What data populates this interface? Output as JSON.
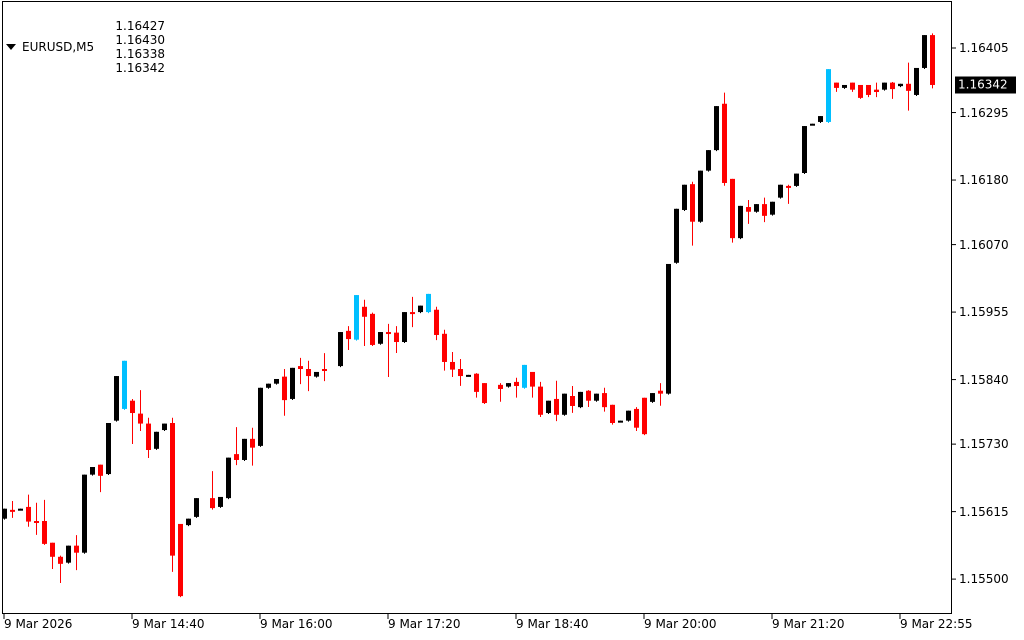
{
  "header": {
    "symbol": "EURUSD,M5",
    "open": "1.16427",
    "high": "1.16430",
    "low": "1.16338",
    "close": "1.16342"
  },
  "colors": {
    "bull": "#000000",
    "bear": "#ff0000",
    "cyan": "#00bfff",
    "current_bg": "#000000"
  },
  "chart_data": {
    "type": "candlestick",
    "title": "EURUSD,M5",
    "ylim": [
      1.15485,
      1.16475
    ],
    "current_price": "1.16342",
    "y_ticks": [
      "1.16405",
      "1.16295",
      "1.16180",
      "1.16070",
      "1.15955",
      "1.15840",
      "1.15730",
      "1.15615",
      "1.15500"
    ],
    "x_ticks": [
      {
        "bar": 0,
        "label": "9 Mar 2026"
      },
      {
        "bar": 16,
        "label": "9 Mar 14:40"
      },
      {
        "bar": 32,
        "label": "9 Mar 16:00"
      },
      {
        "bar": 48,
        "label": "9 Mar 17:20"
      },
      {
        "bar": 64,
        "label": "9 Mar 18:40"
      },
      {
        "bar": 80,
        "label": "9 Mar 20:00"
      },
      {
        "bar": 96,
        "label": "9 Mar 21:20"
      },
      {
        "bar": 112,
        "label": "9 Mar 22:55"
      }
    ],
    "ohlc_fields": [
      "open",
      "high",
      "low",
      "close",
      "color"
    ],
    "candles": [
      [
        1.15603,
        1.1562,
        1.15603,
        1.1562,
        "b"
      ],
      [
        1.15618,
        1.15633,
        1.15606,
        1.15615,
        "r"
      ],
      [
        1.1562,
        1.1562,
        1.1562,
        1.1562,
        "b"
      ],
      [
        1.15623,
        1.15644,
        1.15591,
        1.15598,
        "r"
      ],
      [
        1.15599,
        1.1563,
        1.15577,
        1.15596,
        "r"
      ],
      [
        1.15599,
        1.15635,
        1.1556,
        1.1556,
        "r"
      ],
      [
        1.15562,
        1.15562,
        1.15519,
        1.15538,
        "r"
      ],
      [
        1.15538,
        1.1554,
        1.15495,
        1.15526,
        "r"
      ],
      [
        1.15528,
        1.15557,
        1.15528,
        1.15557,
        "b"
      ],
      [
        1.15557,
        1.15575,
        1.15517,
        1.15545,
        "r"
      ],
      [
        1.15545,
        1.15678,
        1.15545,
        1.15678,
        "b"
      ],
      [
        1.15678,
        1.15691,
        1.15678,
        1.15691,
        "b"
      ],
      [
        1.15695,
        1.15695,
        1.1565,
        1.15676,
        "r"
      ],
      [
        1.15679,
        1.15766,
        1.15679,
        1.15766,
        "b"
      ],
      [
        1.1577,
        1.15846,
        1.1577,
        1.15846,
        "b"
      ],
      [
        1.1579,
        1.15872,
        1.1579,
        1.15872,
        "c"
      ],
      [
        1.15804,
        1.15807,
        1.15732,
        1.15783,
        "r"
      ],
      [
        1.15782,
        1.15822,
        1.15754,
        1.15765,
        "r"
      ],
      [
        1.15765,
        1.15775,
        1.15708,
        1.1572,
        "r"
      ],
      [
        1.15722,
        1.15751,
        1.15722,
        1.15751,
        "b"
      ],
      [
        1.15754,
        1.15765,
        1.15754,
        1.15765,
        "b"
      ],
      [
        1.15766,
        1.15775,
        1.15514,
        1.1554,
        "r"
      ],
      [
        1.15594,
        1.15594,
        1.15471,
        1.15471,
        "r"
      ],
      [
        1.15592,
        1.15603,
        1.15592,
        1.15603,
        "b"
      ],
      [
        1.15606,
        1.15638,
        1.15606,
        1.15638,
        "b"
      ],
      null,
      [
        1.15638,
        1.15684,
        1.1562,
        1.15621,
        "r"
      ],
      [
        1.15623,
        1.1564,
        1.15623,
        1.1564,
        "b"
      ],
      [
        1.15638,
        1.15707,
        1.15638,
        1.15707,
        "b"
      ],
      [
        1.15713,
        1.15759,
        1.15696,
        1.15703,
        "r"
      ],
      [
        1.15703,
        1.15739,
        1.15703,
        1.15739,
        "b"
      ],
      [
        1.15739,
        1.15758,
        1.15695,
        1.15724,
        "r"
      ],
      [
        1.15727,
        1.15826,
        1.15727,
        1.15826,
        "b"
      ],
      [
        1.15826,
        1.15833,
        1.15826,
        1.15833,
        "b"
      ],
      [
        1.15833,
        1.15841,
        1.15833,
        1.15841,
        "b"
      ],
      [
        1.15845,
        1.15858,
        1.1578,
        1.15805,
        "r"
      ],
      [
        1.15807,
        1.1586,
        1.15807,
        1.1586,
        "b"
      ],
      [
        1.15863,
        1.15877,
        1.15834,
        1.15858,
        "r"
      ],
      [
        1.15858,
        1.15872,
        1.15822,
        1.15846,
        "r"
      ],
      [
        1.15845,
        1.15853,
        1.15845,
        1.15853,
        "b"
      ],
      [
        1.15858,
        1.15885,
        1.15839,
        1.15855,
        "r"
      ],
      null,
      [
        1.15863,
        1.15921,
        1.15863,
        1.15921,
        "b"
      ],
      [
        1.15923,
        1.15931,
        1.15892,
        1.15909,
        "r"
      ],
      [
        1.15908,
        1.15984,
        1.15908,
        1.15984,
        "c"
      ],
      [
        1.15964,
        1.15976,
        1.15899,
        1.15947,
        "r"
      ],
      [
        1.15952,
        1.15954,
        1.15899,
        1.15899,
        "r"
      ],
      [
        1.15901,
        1.15921,
        1.15901,
        1.15921,
        "b"
      ],
      [
        1.15921,
        1.15935,
        1.15846,
        1.15918,
        "r"
      ],
      [
        1.1592,
        1.15931,
        1.15887,
        1.15904,
        "r"
      ],
      [
        1.15904,
        1.15955,
        1.15904,
        1.15955,
        "b"
      ],
      [
        1.15955,
        1.15981,
        1.15931,
        1.15952,
        "r"
      ],
      [
        1.15955,
        1.15966,
        1.15955,
        1.15966,
        "b"
      ],
      [
        1.15955,
        1.15986,
        1.15955,
        1.15986,
        "c"
      ],
      [
        1.15959,
        1.15964,
        1.15909,
        1.15916,
        "r"
      ],
      [
        1.15918,
        1.15925,
        1.15857,
        1.1587,
        "r"
      ],
      [
        1.1587,
        1.15887,
        1.15846,
        1.15857,
        "r"
      ],
      [
        1.15858,
        1.15875,
        1.15831,
        1.15846,
        "r"
      ],
      [
        1.15848,
        1.15848,
        1.15848,
        1.15848,
        "b"
      ],
      [
        1.1585,
        1.15851,
        1.15811,
        1.15819,
        "r"
      ],
      [
        1.15834,
        1.15834,
        1.158,
        1.158,
        "r"
      ],
      null,
      [
        1.15831,
        1.15834,
        1.15804,
        1.15824,
        "r"
      ],
      [
        1.15828,
        1.15834,
        1.15828,
        1.15834,
        "b"
      ],
      [
        1.15836,
        1.15843,
        1.15811,
        1.15829,
        "r"
      ],
      [
        1.15826,
        1.15865,
        1.15826,
        1.15865,
        "c"
      ],
      [
        1.15853,
        1.15853,
        1.15811,
        1.15828,
        "r"
      ],
      [
        1.15828,
        1.15836,
        1.15778,
        1.1578,
        "r"
      ],
      [
        1.15783,
        1.15804,
        1.15783,
        1.15804,
        "b"
      ],
      [
        1.15807,
        1.15838,
        1.15771,
        1.1578,
        "r"
      ],
      [
        1.1578,
        1.15816,
        1.1578,
        1.15816,
        "b"
      ],
      [
        1.15812,
        1.15829,
        1.15785,
        1.15795,
        "r"
      ],
      [
        1.15793,
        1.15819,
        1.15793,
        1.15819,
        "b"
      ],
      [
        1.15821,
        1.15822,
        1.15795,
        1.15804,
        "r"
      ],
      [
        1.15804,
        1.15816,
        1.15804,
        1.15816,
        "b"
      ],
      [
        1.15817,
        1.15826,
        1.15787,
        1.15793,
        "r"
      ],
      [
        1.15797,
        1.15797,
        1.15765,
        1.15766,
        "r"
      ],
      [
        1.1577,
        1.1577,
        1.1577,
        1.1577,
        "b"
      ],
      [
        1.1577,
        1.15787,
        1.1577,
        1.15787,
        "b"
      ],
      [
        1.1579,
        1.15793,
        1.15754,
        1.15758,
        "r"
      ],
      [
        1.15809,
        1.15809,
        1.15747,
        1.15747,
        "r"
      ],
      [
        1.15802,
        1.15817,
        1.15802,
        1.15817,
        "b"
      ],
      [
        1.15821,
        1.15834,
        1.15797,
        1.15816,
        "r"
      ],
      [
        1.15816,
        1.16037,
        1.15816,
        1.16037,
        "b"
      ],
      [
        1.16039,
        1.16131,
        1.16039,
        1.16131,
        "b"
      ],
      [
        1.16129,
        1.16172,
        1.16129,
        1.16172,
        "b"
      ],
      [
        1.16173,
        1.16177,
        1.1607,
        1.16109,
        "r"
      ],
      [
        1.16109,
        1.16196,
        1.16109,
        1.16196,
        "b"
      ],
      [
        1.16196,
        1.16231,
        1.16196,
        1.16231,
        "b"
      ],
      [
        1.16231,
        1.16306,
        1.16231,
        1.16306,
        "b"
      ],
      [
        1.1631,
        1.16329,
        1.16172,
        1.16175,
        "r"
      ],
      [
        1.16182,
        1.16182,
        1.16075,
        1.16081,
        "r"
      ],
      [
        1.16081,
        1.16136,
        1.16081,
        1.16136,
        "b"
      ],
      [
        1.16134,
        1.16146,
        1.16107,
        1.16126,
        "r"
      ],
      [
        1.16126,
        1.16139,
        1.16126,
        1.16139,
        "b"
      ],
      [
        1.16139,
        1.1615,
        1.1611,
        1.16119,
        "r"
      ],
      [
        1.16121,
        1.16143,
        1.16121,
        1.16143,
        "b"
      ],
      [
        1.1615,
        1.16172,
        1.1615,
        1.16172,
        "b"
      ],
      [
        1.1617,
        1.16172,
        1.16141,
        1.16167,
        "r"
      ],
      [
        1.1617,
        1.16191,
        1.1617,
        1.16191,
        "b"
      ],
      [
        1.16192,
        1.16272,
        1.16192,
        1.16272,
        "b"
      ],
      [
        1.16276,
        1.16276,
        1.16276,
        1.16276,
        "b"
      ],
      [
        1.16279,
        1.16289,
        1.16279,
        1.16289,
        "b"
      ],
      [
        1.16279,
        1.16369,
        1.16279,
        1.16369,
        "c"
      ],
      [
        1.16346,
        1.16346,
        1.16332,
        1.16337,
        "r"
      ],
      [
        1.16337,
        1.16342,
        1.16337,
        1.16342,
        "b"
      ],
      [
        1.16346,
        1.16346,
        1.16332,
        1.16334,
        "r"
      ],
      [
        1.16342,
        1.16342,
        1.1632,
        1.1632,
        "r"
      ],
      [
        1.16342,
        1.16342,
        1.16323,
        1.16325,
        "r"
      ],
      [
        1.16334,
        1.16346,
        1.16323,
        1.1633,
        "r"
      ],
      [
        1.16334,
        1.16346,
        1.16334,
        1.16346,
        "b"
      ],
      [
        1.16346,
        1.16347,
        1.1632,
        1.16335,
        "r"
      ],
      [
        1.1634,
        1.16344,
        1.1634,
        1.16344,
        "b"
      ],
      [
        1.16344,
        1.1638,
        1.163,
        1.16332,
        "r"
      ],
      [
        1.16325,
        1.16371,
        1.16325,
        1.16371,
        "b"
      ],
      [
        1.16371,
        1.16427,
        1.16371,
        1.16427,
        "b"
      ],
      [
        1.16427,
        1.1643,
        1.16338,
        1.16342,
        "r"
      ]
    ]
  }
}
